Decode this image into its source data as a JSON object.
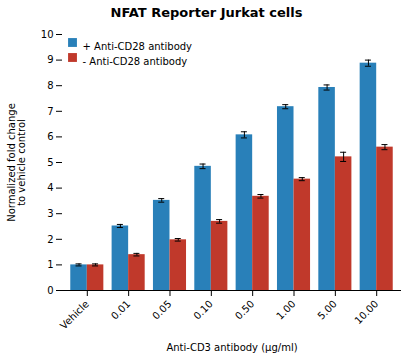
{
  "chart_data": {
    "type": "bar",
    "title": "NFAT Reporter Jurkat cells",
    "xlabel": "Anti-CD3 antibody (μg/ml)",
    "ylabel": "Normalized fold change\nto vehicle control",
    "categories": [
      "Vehicle",
      "0.01",
      "0.05",
      "0.10",
      "0.50",
      "1.00",
      "5.00",
      "10.00"
    ],
    "series": [
      {
        "name": "+ Anti-CD28 antibody",
        "color": "#2980b9",
        "values": [
          1.0,
          2.52,
          3.52,
          4.85,
          6.08,
          7.18,
          7.93,
          8.88
        ],
        "errors": [
          0.04,
          0.06,
          0.07,
          0.09,
          0.12,
          0.08,
          0.1,
          0.12
        ]
      },
      {
        "name": "- Anti-CD28 antibody",
        "color": "#c0392b",
        "values": [
          1.0,
          1.4,
          1.98,
          2.7,
          3.68,
          4.35,
          5.22,
          5.6
        ],
        "errors": [
          0.04,
          0.05,
          0.05,
          0.07,
          0.07,
          0.06,
          0.18,
          0.1
        ]
      }
    ],
    "ylim": [
      0,
      10
    ],
    "yticks": [
      0,
      1,
      2,
      3,
      4,
      5,
      6,
      7,
      8,
      9,
      10
    ],
    "grid": false,
    "legend": "upper left"
  }
}
